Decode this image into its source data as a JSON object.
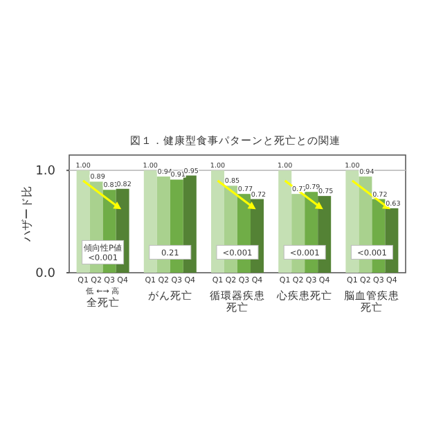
{
  "chart_data": {
    "type": "bar",
    "title": "図１．健康型食事パターンと死亡との関連",
    "ylabel": "ハザード比",
    "categories": [
      "全死亡",
      "がん死亡",
      "循環器疾患死亡",
      "心疾患死亡",
      "脳血管疾患死亡"
    ],
    "series": [
      {
        "name": "Q1",
        "color": "#c5e0b4",
        "values": [
          1.0,
          1.0,
          1.0,
          1.0,
          1.0
        ],
        "value_labels": [
          "1.00",
          "1.00",
          "1.00",
          "1.00",
          "1.00"
        ]
      },
      {
        "name": "Q2",
        "color": "#a9d18e",
        "values": [
          0.89,
          0.94,
          0.85,
          0.77,
          0.94
        ],
        "value_labels": [
          "0.89",
          "0.94",
          "0.85",
          "0.77",
          "0.94"
        ]
      },
      {
        "name": "Q3",
        "color": "#70ad47",
        "values": [
          0.81,
          0.91,
          0.77,
          0.79,
          0.72
        ],
        "value_labels": [
          "0.81",
          "0.91",
          "0.77",
          "0.79",
          "0.72"
        ]
      },
      {
        "name": "Q4",
        "color": "#548235",
        "values": [
          0.82,
          0.95,
          0.72,
          0.75,
          0.63
        ],
        "value_labels": [
          "0.82",
          "0.95",
          "0.72",
          "0.75",
          "0.63"
        ]
      }
    ],
    "ylim": [
      0,
      1.15
    ],
    "yticks": [
      {
        "value": 0,
        "label": "0.0"
      },
      {
        "value": 1,
        "label": "1.0"
      }
    ],
    "grid": false,
    "ref_lines": [
      {
        "axis": "y",
        "value": 1,
        "color": "#bfbfbf"
      }
    ],
    "annotations": [
      {
        "text": "傾向性P値\n<0.001",
        "x": "全死亡",
        "y": 0.2
      },
      {
        "text": "0.21",
        "x": "がん死亡",
        "y": 0.2
      },
      {
        "text": "<0.001",
        "x": "循環器疾患死亡",
        "y": 0.2
      },
      {
        "text": "<0.001",
        "x": "心疾患死亡",
        "y": 0.2
      },
      {
        "text": "<0.001",
        "x": "脳血管疾患死亡",
        "y": 0.2
      },
      "低 ←→ 高"
    ]
  }
}
